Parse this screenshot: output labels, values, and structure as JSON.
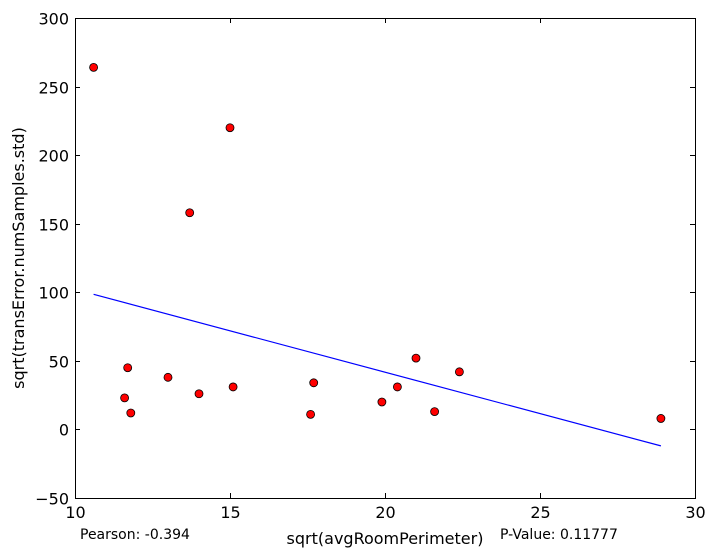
{
  "chart_data": {
    "type": "scatter",
    "title": "",
    "xlabel": "sqrt(avgRoomPerimeter)",
    "ylabel": "sqrt(transError.numSamples.std)",
    "xlim": [
      10,
      30
    ],
    "ylim": [
      -50,
      300
    ],
    "xticks": [
      "10",
      "15",
      "20",
      "25",
      "30"
    ],
    "yticks": [
      "−50",
      "0",
      "50",
      "100",
      "150",
      "200",
      "250",
      "300"
    ],
    "grid": false,
    "points": [
      {
        "x": 10.6,
        "y": 264
      },
      {
        "x": 11.6,
        "y": 23
      },
      {
        "x": 11.7,
        "y": 45
      },
      {
        "x": 11.8,
        "y": 12
      },
      {
        "x": 13.0,
        "y": 38
      },
      {
        "x": 13.7,
        "y": 158
      },
      {
        "x": 14.0,
        "y": 26
      },
      {
        "x": 15.0,
        "y": 220
      },
      {
        "x": 15.1,
        "y": 31
      },
      {
        "x": 17.6,
        "y": 11
      },
      {
        "x": 17.7,
        "y": 34
      },
      {
        "x": 19.9,
        "y": 20
      },
      {
        "x": 20.4,
        "y": 31
      },
      {
        "x": 21.0,
        "y": 52
      },
      {
        "x": 21.6,
        "y": 13
      },
      {
        "x": 22.4,
        "y": 42
      },
      {
        "x": 28.9,
        "y": 8
      }
    ],
    "fit_line": {
      "x": [
        10.6,
        28.9
      ],
      "y": [
        98.5,
        -12
      ]
    },
    "point_color": "#ff0000",
    "line_color": "#0000ff"
  },
  "stats": {
    "pearson_label": "Pearson: -0.394",
    "pvalue_label": "P-Value: 0.11777"
  }
}
